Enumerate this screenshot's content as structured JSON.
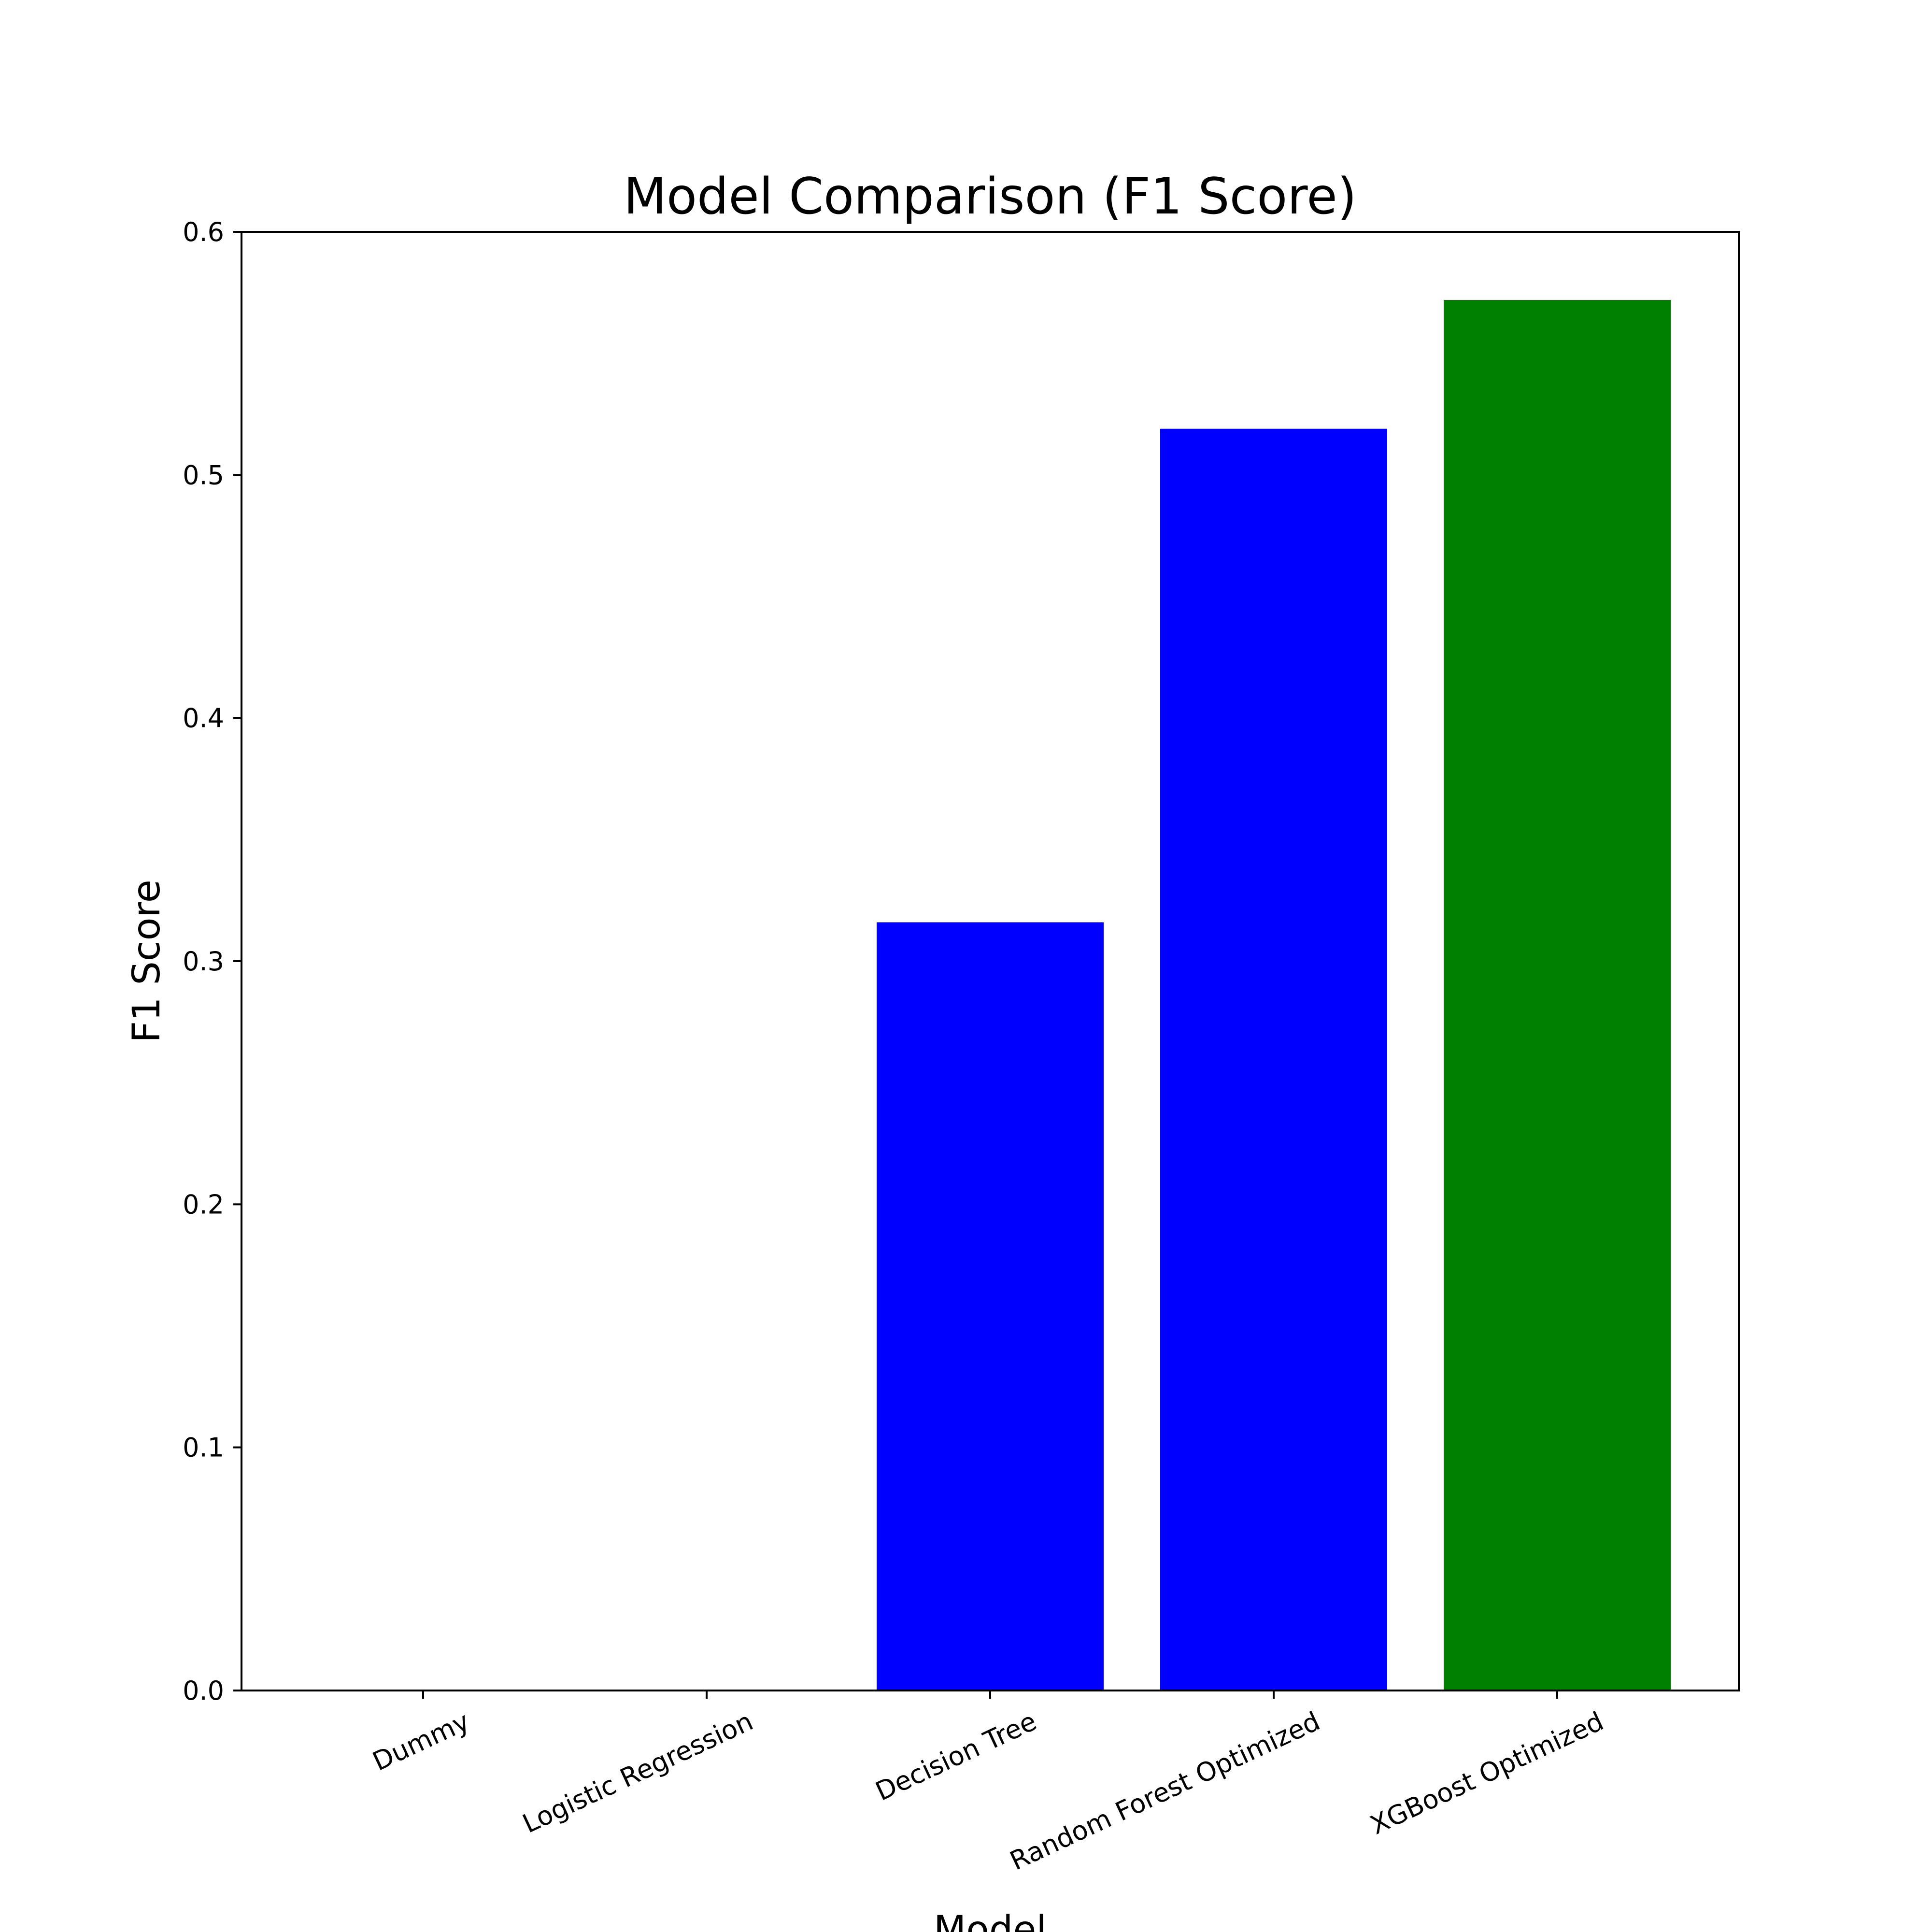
{
  "chart_data": {
    "type": "bar",
    "title": "Model Comparison (F1 Score)",
    "xlabel": "Model",
    "ylabel": "F1 Score",
    "categories": [
      "Dummy",
      "Logistic Regression",
      "Decision Tree",
      "Random Forest Optimized",
      "XGBoost Optimized"
    ],
    "values": [
      0.0,
      0.0,
      0.316,
      0.519,
      0.572
    ],
    "colors": [
      "#0000ff",
      "#0000ff",
      "#0000ff",
      "#0000ff",
      "#008000"
    ],
    "ylim": [
      0,
      0.6
    ],
    "yticks": [
      "0.0",
      "0.1",
      "0.2",
      "0.3",
      "0.4",
      "0.5",
      "0.6"
    ],
    "grid": false,
    "legend": "none"
  }
}
